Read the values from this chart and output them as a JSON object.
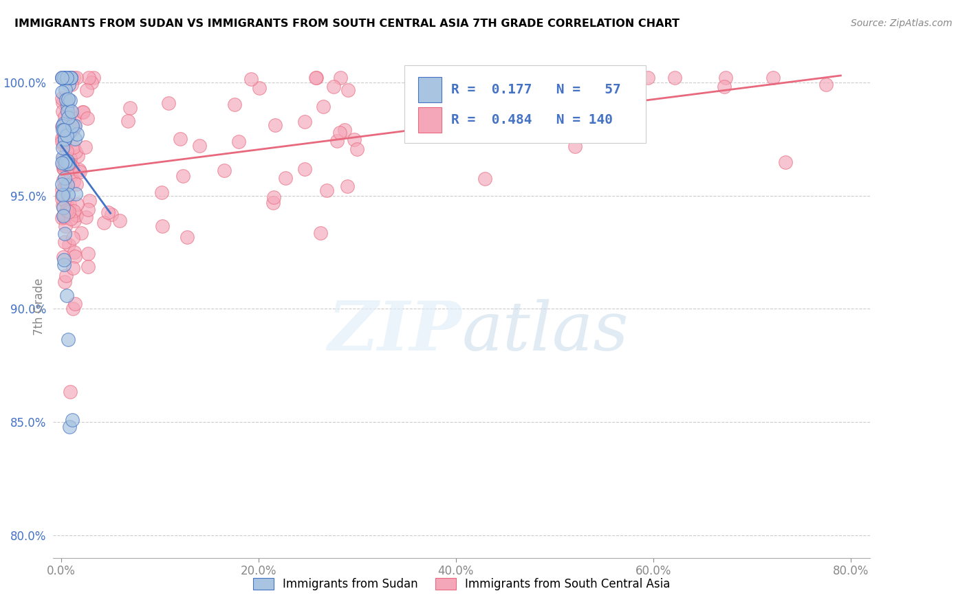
{
  "title": "IMMIGRANTS FROM SUDAN VS IMMIGRANTS FROM SOUTH CENTRAL ASIA 7TH GRADE CORRELATION CHART",
  "source": "Source: ZipAtlas.com",
  "ylabel": "7th Grade",
  "x_tick_labels": [
    "0.0%",
    "20.0%",
    "40.0%",
    "60.0%",
    "80.0%"
  ],
  "y_tick_labels": [
    "80.0%",
    "85.0%",
    "90.0%",
    "95.0%",
    "100.0%"
  ],
  "xlim": [
    0.0,
    0.8
  ],
  "ylim": [
    0.79,
    1.012
  ],
  "color_sudan": "#a8c4e0",
  "color_line_sudan": "#4472c4",
  "color_asia": "#f4a7b9",
  "color_line_asia": "#e8697d",
  "color_text_blue": "#4472c4",
  "color_axis_text": "#4472c4",
  "legend_line1": "R =  0.177   N =   57",
  "legend_line2": "R =  0.484   N = 140",
  "sudan_seed": 99,
  "asia_seed": 77
}
